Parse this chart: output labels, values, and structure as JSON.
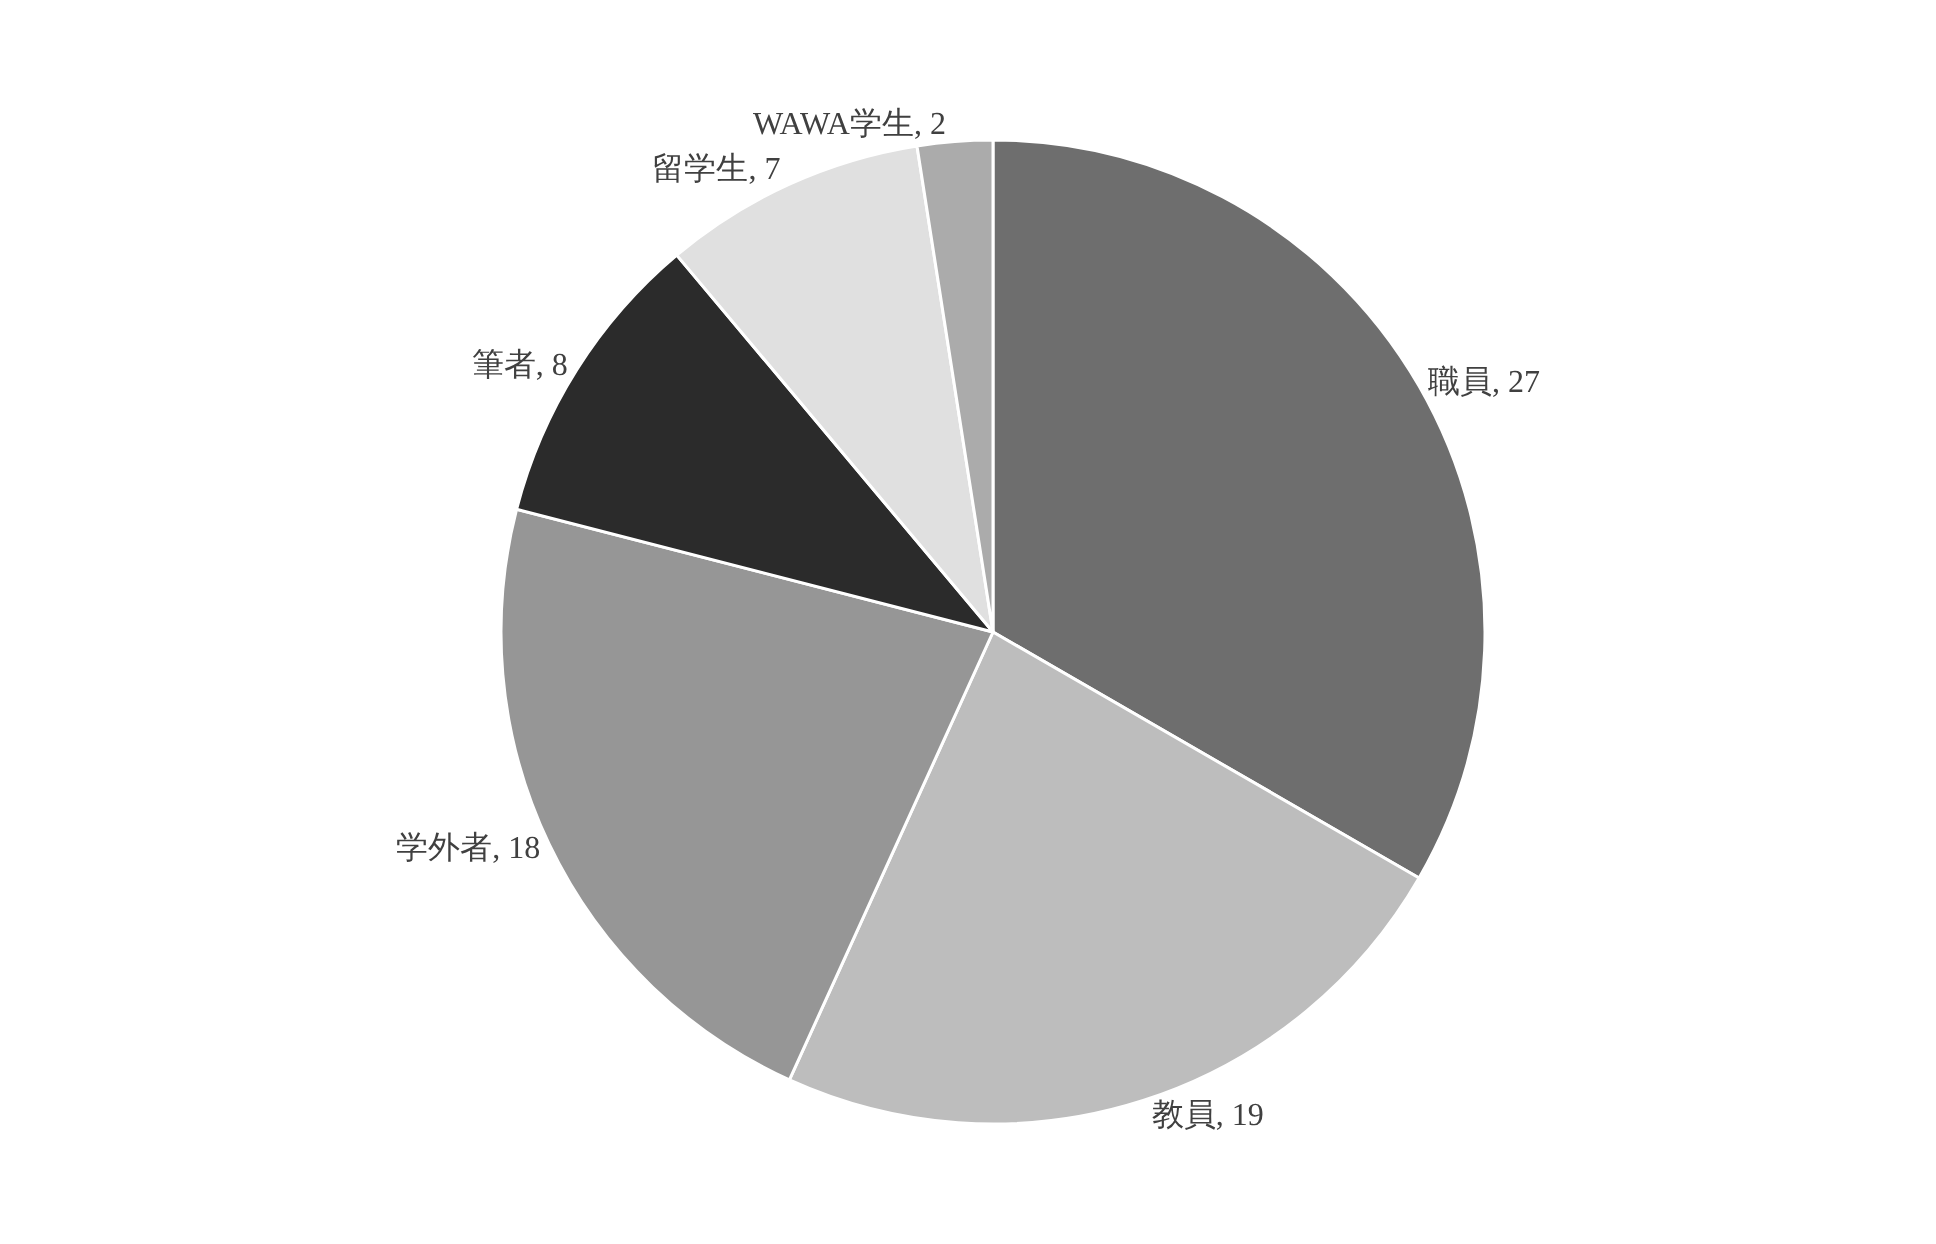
{
  "chart_data": {
    "type": "pie",
    "categories": [
      "職員",
      "教員",
      "学外者",
      "筆者",
      "留学生",
      "WAWA学生"
    ],
    "values": [
      27,
      19,
      18,
      8,
      7,
      2
    ],
    "colors": [
      "#6e6e6e",
      "#bdbdbd",
      "#969696",
      "#2b2b2b",
      "#e0e0e0",
      "#ababab"
    ],
    "value_labels": [
      "27",
      "19",
      "18",
      "8",
      "7",
      "2"
    ],
    "legend": false
  }
}
